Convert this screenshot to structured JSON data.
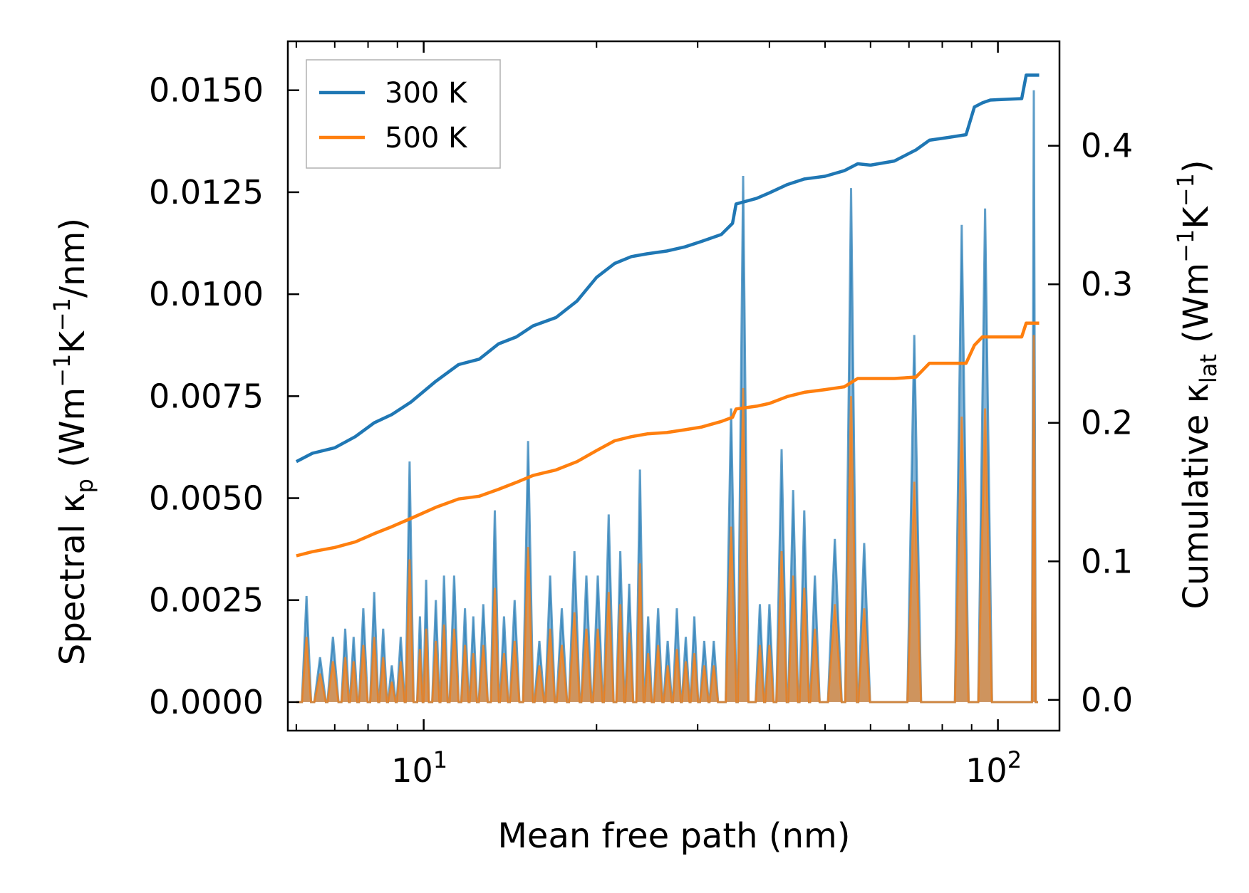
{
  "chart_data": {
    "type": "line",
    "title": "",
    "xlabel": "Mean free path (nm)",
    "xscale": "log",
    "xlim": [
      5.8,
      128
    ],
    "xticks": [
      {
        "value": 10,
        "base": "10",
        "exp": "1"
      },
      {
        "value": 100,
        "base": "10",
        "exp": "2"
      }
    ],
    "ylabel_left": {
      "pre": "Spectral κ",
      "sub": "p",
      "units": " (Wm",
      "u1": "−1",
      "mid": "K",
      "u2": "−1",
      "post": "/nm)"
    },
    "ylabel_right": {
      "pre": "Cumulative κ",
      "sub": "lat",
      "units": " (Wm",
      "u1": "−1",
      "mid": "K",
      "u2": "−1",
      "post": ")"
    },
    "ylim_left": [
      -0.0007,
      0.0162
    ],
    "ylim_right": [
      -0.0222,
      0.4754
    ],
    "yticks_left": [
      {
        "value": 0.0,
        "label": "0.0000"
      },
      {
        "value": 0.0025,
        "label": "0.0025"
      },
      {
        "value": 0.005,
        "label": "0.0050"
      },
      {
        "value": 0.0075,
        "label": "0.0075"
      },
      {
        "value": 0.01,
        "label": "0.0100"
      },
      {
        "value": 0.0125,
        "label": "0.0125"
      },
      {
        "value": 0.015,
        "label": "0.0150"
      }
    ],
    "yticks_right": [
      {
        "value": 0.0,
        "label": "0.0"
      },
      {
        "value": 0.1,
        "label": "0.1"
      },
      {
        "value": 0.2,
        "label": "0.2"
      },
      {
        "value": 0.3,
        "label": "0.3"
      },
      {
        "value": 0.4,
        "label": "0.4"
      }
    ],
    "legend": {
      "position": "top-left",
      "entries": [
        {
          "label": "300 K",
          "color": "#1f77b4"
        },
        {
          "label": "500 K",
          "color": "#ff7f0e"
        }
      ]
    },
    "series": [
      {
        "name": "300 K",
        "color": "#1f77b4",
        "cumulative": {
          "x": [
            6.0,
            6.4,
            7.0,
            7.6,
            8.2,
            8.8,
            9.5,
            10.5,
            11.5,
            12.5,
            13.5,
            14.5,
            15.5,
            17.0,
            18.5,
            20.0,
            21.5,
            23.0,
            24.5,
            26.5,
            28.5,
            30.5,
            33.0,
            34.5,
            35.0,
            38.0,
            40.0,
            43.0,
            46.0,
            50.0,
            54.0,
            57.0,
            60.0,
            66.0,
            72.0,
            76.0,
            82.0,
            88.0,
            91.0,
            94.0,
            97.0,
            110.0,
            112.0,
            118.0
          ],
          "y": [
            0.172,
            0.178,
            0.182,
            0.19,
            0.2,
            0.206,
            0.215,
            0.23,
            0.242,
            0.246,
            0.257,
            0.262,
            0.27,
            0.276,
            0.288,
            0.305,
            0.315,
            0.32,
            0.322,
            0.324,
            0.327,
            0.331,
            0.336,
            0.344,
            0.358,
            0.362,
            0.366,
            0.372,
            0.376,
            0.378,
            0.382,
            0.387,
            0.386,
            0.389,
            0.397,
            0.404,
            0.406,
            0.408,
            0.428,
            0.431,
            0.433,
            0.434,
            0.451,
            0.451
          ]
        },
        "spectral_peaks": [
          [
            6.25,
            0.0026
          ],
          [
            6.6,
            0.0011
          ],
          [
            6.95,
            0.0016
          ],
          [
            7.3,
            0.0018
          ],
          [
            7.55,
            0.0016
          ],
          [
            7.85,
            0.0023
          ],
          [
            8.2,
            0.0027
          ],
          [
            8.5,
            0.0018
          ],
          [
            8.8,
            0.0009
          ],
          [
            9.12,
            0.0016
          ],
          [
            9.45,
            0.0059
          ],
          [
            9.85,
            0.0021
          ],
          [
            10.1,
            0.003
          ],
          [
            10.5,
            0.0025
          ],
          [
            10.85,
            0.0031
          ],
          [
            11.3,
            0.0031
          ],
          [
            11.8,
            0.0023
          ],
          [
            12.2,
            0.0021
          ],
          [
            12.7,
            0.0024
          ],
          [
            13.3,
            0.0047
          ],
          [
            13.8,
            0.0021
          ],
          [
            14.4,
            0.0025
          ],
          [
            15.2,
            0.0064
          ],
          [
            15.9,
            0.0015
          ],
          [
            16.6,
            0.0031
          ],
          [
            17.4,
            0.0023
          ],
          [
            18.3,
            0.0037
          ],
          [
            19.2,
            0.0031
          ],
          [
            20.1,
            0.0031
          ],
          [
            21.0,
            0.0046
          ],
          [
            22.0,
            0.0037
          ],
          [
            22.8,
            0.0029
          ],
          [
            23.8,
            0.0057
          ],
          [
            24.6,
            0.0021
          ],
          [
            25.6,
            0.0023
          ],
          [
            26.6,
            0.0015
          ],
          [
            27.6,
            0.0023
          ],
          [
            28.6,
            0.0016
          ],
          [
            29.6,
            0.0021
          ],
          [
            30.8,
            0.0015
          ],
          [
            32.0,
            0.0015
          ],
          [
            34.3,
            0.0072
          ],
          [
            36.0,
            0.0129
          ],
          [
            38.5,
            0.0024
          ],
          [
            40.0,
            0.0024
          ],
          [
            42.0,
            0.0062
          ],
          [
            44.0,
            0.0052
          ],
          [
            46.0,
            0.0047
          ],
          [
            48.0,
            0.0031
          ],
          [
            52.0,
            0.004
          ],
          [
            55.5,
            0.0126
          ],
          [
            58.5,
            0.0039
          ],
          [
            71.5,
            0.009
          ],
          [
            86.5,
            0.0117
          ],
          [
            95.0,
            0.0121
          ],
          [
            115.5,
            0.015
          ]
        ]
      },
      {
        "name": "500 K",
        "color": "#ff7f0e",
        "cumulative": {
          "x": [
            6.0,
            6.4,
            7.0,
            7.6,
            8.2,
            8.8,
            9.5,
            10.5,
            11.5,
            12.5,
            13.5,
            14.5,
            15.5,
            17.0,
            18.5,
            20.0,
            21.5,
            23.0,
            24.5,
            26.5,
            28.5,
            30.5,
            33.0,
            34.5,
            35.0,
            38.0,
            40.0,
            43.0,
            46.0,
            50.0,
            54.0,
            57.0,
            60.0,
            66.0,
            72.0,
            76.0,
            82.0,
            88.0,
            91.0,
            94.0,
            97.0,
            110.0,
            112.0,
            118.0
          ],
          "y": [
            0.104,
            0.107,
            0.11,
            0.114,
            0.12,
            0.125,
            0.131,
            0.139,
            0.145,
            0.147,
            0.152,
            0.157,
            0.162,
            0.166,
            0.172,
            0.18,
            0.187,
            0.19,
            0.192,
            0.193,
            0.195,
            0.197,
            0.201,
            0.204,
            0.21,
            0.212,
            0.214,
            0.219,
            0.222,
            0.224,
            0.226,
            0.232,
            0.232,
            0.232,
            0.233,
            0.243,
            0.243,
            0.243,
            0.256,
            0.262,
            0.262,
            0.262,
            0.272,
            0.272
          ]
        },
        "spectral_peaks": [
          [
            6.25,
            0.0016
          ],
          [
            6.6,
            0.0007
          ],
          [
            6.95,
            0.001
          ],
          [
            7.3,
            0.0011
          ],
          [
            7.55,
            0.001
          ],
          [
            7.85,
            0.0014
          ],
          [
            8.2,
            0.0016
          ],
          [
            8.5,
            0.0011
          ],
          [
            8.8,
            0.0005
          ],
          [
            9.12,
            0.001
          ],
          [
            9.45,
            0.0035
          ],
          [
            9.85,
            0.0013
          ],
          [
            10.1,
            0.0018
          ],
          [
            10.5,
            0.0015
          ],
          [
            10.85,
            0.0019
          ],
          [
            11.3,
            0.0018
          ],
          [
            11.8,
            0.0014
          ],
          [
            12.2,
            0.0012
          ],
          [
            12.7,
            0.0014
          ],
          [
            13.3,
            0.0028
          ],
          [
            13.8,
            0.0012
          ],
          [
            14.4,
            0.0015
          ],
          [
            15.2,
            0.0038
          ],
          [
            15.9,
            0.0009
          ],
          [
            16.6,
            0.0018
          ],
          [
            17.4,
            0.0014
          ],
          [
            18.3,
            0.0022
          ],
          [
            19.2,
            0.0018
          ],
          [
            20.1,
            0.0018
          ],
          [
            21.0,
            0.0027
          ],
          [
            22.0,
            0.0024
          ],
          [
            22.8,
            0.0017
          ],
          [
            23.8,
            0.0034
          ],
          [
            24.6,
            0.0012
          ],
          [
            25.6,
            0.0014
          ],
          [
            26.6,
            0.0009
          ],
          [
            27.6,
            0.0013
          ],
          [
            28.6,
            0.001
          ],
          [
            29.6,
            0.0012
          ],
          [
            30.8,
            0.0009
          ],
          [
            32.0,
            0.0009
          ],
          [
            34.3,
            0.0043
          ],
          [
            36.0,
            0.0077
          ],
          [
            38.5,
            0.0014
          ],
          [
            40.0,
            0.0014
          ],
          [
            42.0,
            0.0037
          ],
          [
            44.0,
            0.0031
          ],
          [
            46.0,
            0.0028
          ],
          [
            48.0,
            0.0018
          ],
          [
            52.0,
            0.0024
          ],
          [
            55.5,
            0.0075
          ],
          [
            58.5,
            0.0023
          ],
          [
            71.5,
            0.0054
          ],
          [
            86.5,
            0.007
          ],
          [
            95.0,
            0.0072
          ],
          [
            115.5,
            0.009
          ]
        ]
      }
    ]
  }
}
